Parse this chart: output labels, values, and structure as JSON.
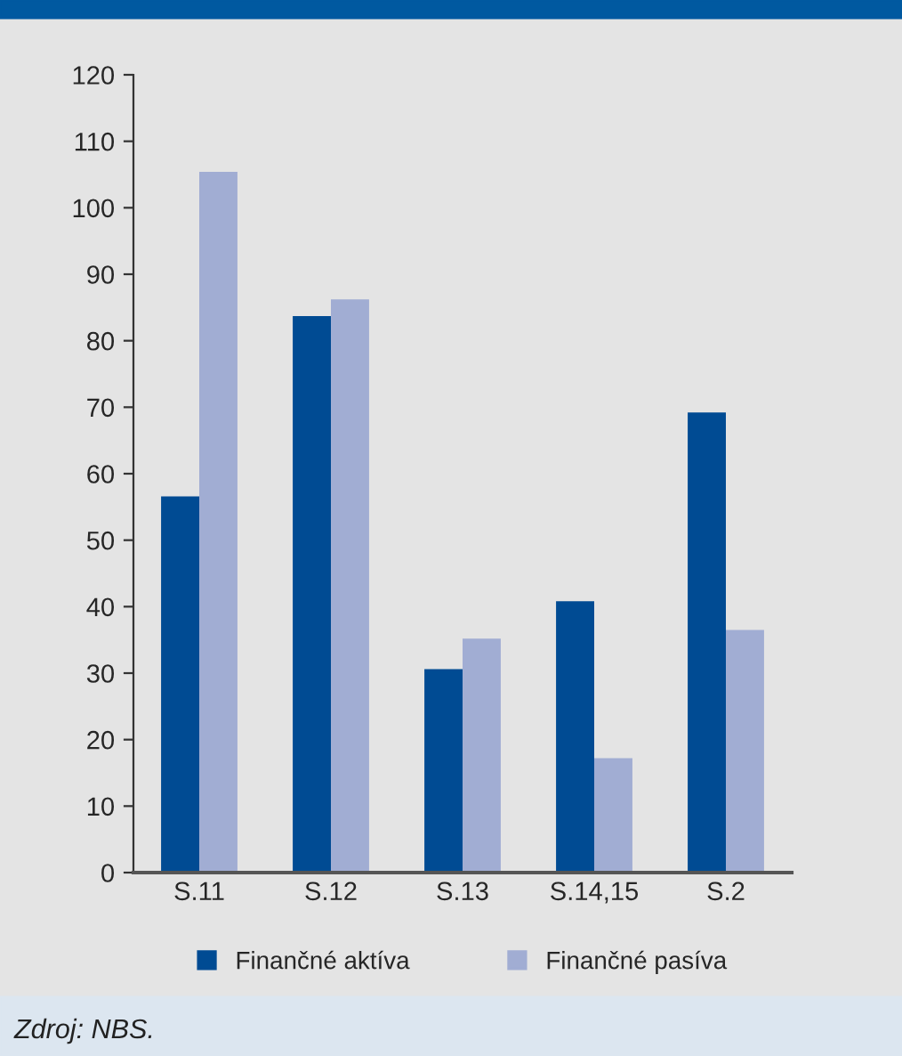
{
  "chart_data": {
    "type": "bar",
    "categories": [
      "S.11",
      "S.12",
      "S.13",
      "S.14,15",
      "S.2"
    ],
    "series": [
      {
        "name": "Finančné aktíva",
        "color": "#004b93",
        "values": [
          56.6,
          83.7,
          30.6,
          40.8,
          69.2
        ]
      },
      {
        "name": "Finančné pasíva",
        "color": "#a1add3",
        "values": [
          105.4,
          86.2,
          35.2,
          17.2,
          36.5
        ]
      }
    ],
    "ylim": [
      0,
      120
    ],
    "yticks": [
      0,
      10,
      20,
      30,
      40,
      50,
      60,
      70,
      80,
      90,
      100,
      110,
      120
    ],
    "grid": false,
    "legend": "bottom",
    "annotations": [
      "Zdroj: NBS."
    ]
  }
}
